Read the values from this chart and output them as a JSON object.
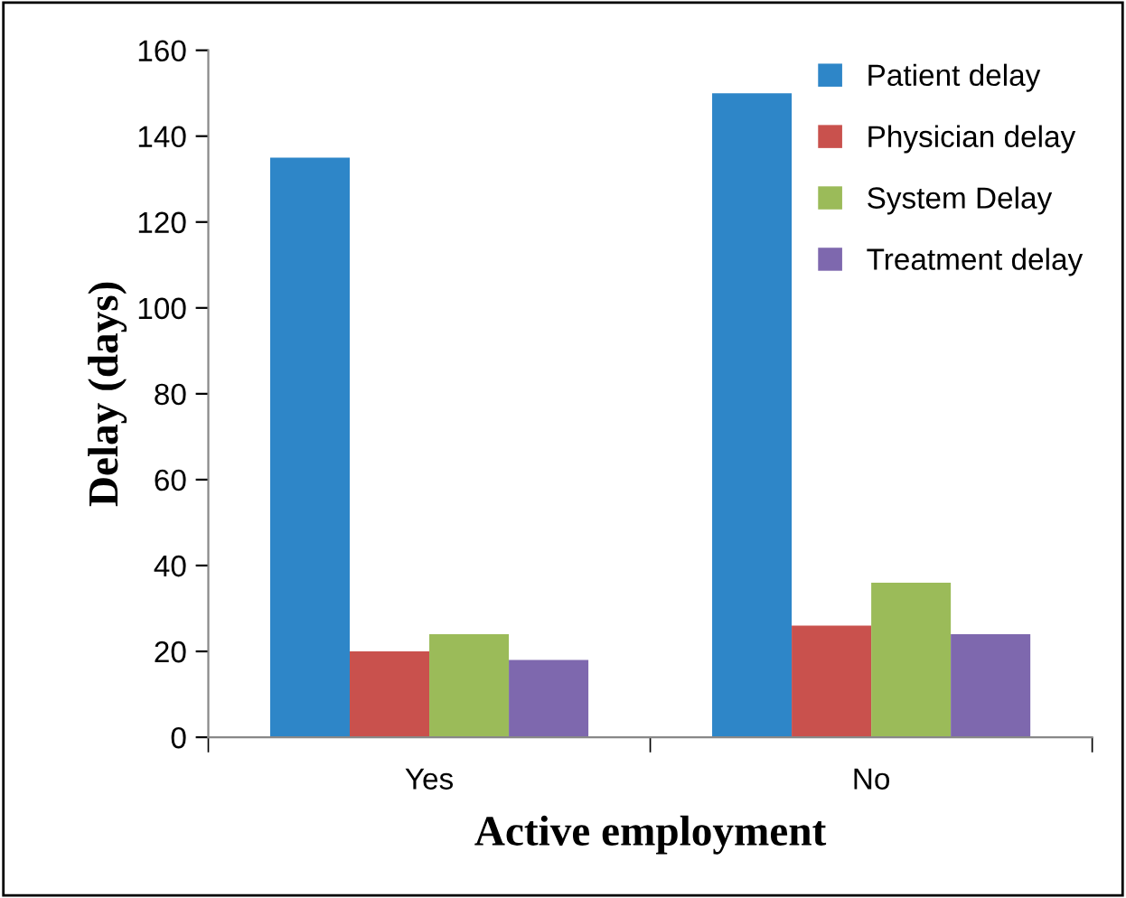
{
  "chart_data": {
    "type": "bar",
    "xlabel": "Active employment",
    "ylabel": "Delay (days)",
    "categories": [
      "Yes",
      "No"
    ],
    "series": [
      {
        "name": "Patient delay",
        "color": "#2e86c8",
        "values": [
          135,
          150
        ]
      },
      {
        "name": "Physician delay",
        "color": "#c9514d",
        "values": [
          20,
          26
        ]
      },
      {
        "name": "System Delay",
        "color": "#9bbb59",
        "values": [
          24,
          36
        ]
      },
      {
        "name": "Treatment delay",
        "color": "#7e68ae",
        "values": [
          18,
          24
        ]
      }
    ],
    "ylim": [
      0,
      160
    ],
    "yticks": [
      0,
      20,
      40,
      60,
      80,
      100,
      120,
      140,
      160
    ],
    "grid": false,
    "legend": "top right"
  }
}
